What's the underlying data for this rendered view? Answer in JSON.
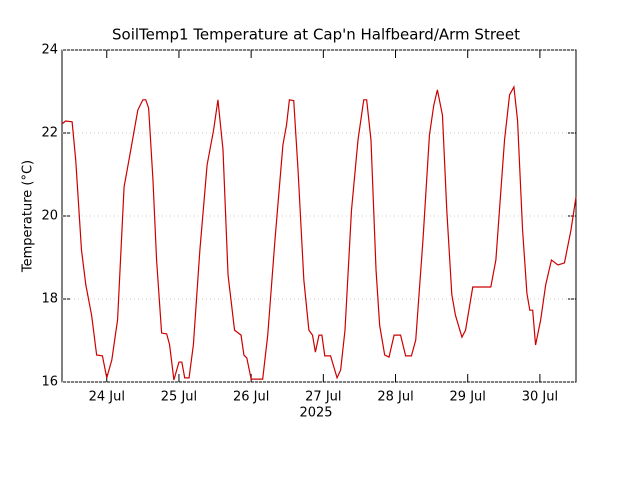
{
  "chart_data": {
    "type": "line",
    "title": "SoilTemp1 Temperature at Cap'n Halfbeard/Arm Street",
    "x_label": "2025",
    "y_label": "Temperature (°C)",
    "x": [
      23.38,
      23.43,
      23.52,
      23.57,
      23.65,
      23.71,
      23.79,
      23.86,
      23.94,
      24.0,
      24.07,
      24.15,
      24.24,
      24.32,
      24.43,
      24.5,
      24.54,
      24.58,
      24.64,
      24.69,
      24.76,
      24.83,
      24.87,
      24.93,
      25.0,
      25.04,
      25.08,
      25.14,
      25.2,
      25.29,
      25.39,
      25.48,
      25.54,
      25.61,
      25.68,
      25.77,
      25.86,
      25.9,
      25.94,
      26.0,
      26.16,
      26.23,
      26.33,
      26.44,
      26.49,
      26.53,
      26.59,
      26.65,
      26.73,
      26.8,
      26.85,
      26.89,
      26.94,
      26.98,
      27.02,
      27.1,
      27.19,
      27.24,
      27.3,
      27.39,
      27.48,
      27.56,
      27.6,
      27.66,
      27.73,
      27.78,
      27.85,
      27.91,
      27.98,
      28.07,
      28.14,
      28.22,
      28.28,
      28.38,
      28.47,
      28.53,
      28.58,
      28.65,
      28.71,
      28.78,
      28.83,
      28.92,
      28.97,
      29.07,
      29.32,
      29.39,
      29.51,
      29.58,
      29.64,
      29.69,
      29.76,
      29.82,
      29.86,
      29.9,
      29.94,
      30.01,
      30.08,
      30.16,
      30.25,
      30.34,
      30.43,
      30.5
    ],
    "series": [
      {
        "name": "SoilTemp1",
        "color": "#cc0000",
        "values": [
          22.22,
          22.29,
          22.27,
          21.35,
          19.18,
          18.34,
          17.61,
          16.65,
          16.63,
          16.1,
          16.53,
          17.5,
          20.7,
          21.47,
          22.55,
          22.8,
          22.8,
          22.6,
          20.87,
          18.94,
          17.18,
          17.16,
          16.9,
          16.05,
          16.48,
          16.48,
          16.1,
          16.1,
          16.9,
          19.18,
          21.23,
          22.07,
          22.8,
          21.6,
          18.58,
          17.25,
          17.13,
          16.65,
          16.58,
          16.07,
          16.07,
          17.13,
          19.42,
          21.71,
          22.19,
          22.8,
          22.78,
          21.1,
          18.46,
          17.25,
          17.13,
          16.72,
          17.13,
          17.13,
          16.63,
          16.63,
          16.1,
          16.29,
          17.25,
          20.14,
          21.83,
          22.8,
          22.8,
          21.83,
          18.7,
          17.37,
          16.65,
          16.6,
          17.13,
          17.13,
          16.63,
          16.63,
          17.01,
          19.42,
          21.95,
          22.67,
          23.04,
          22.43,
          20.14,
          18.1,
          17.61,
          17.08,
          17.25,
          18.29,
          18.29,
          18.94,
          21.83,
          22.92,
          23.11,
          22.31,
          19.66,
          18.14,
          17.73,
          17.73,
          16.89,
          17.49,
          18.34,
          18.94,
          18.82,
          18.87,
          19.66,
          20.46
        ]
      }
    ],
    "xlim": [
      23.38,
      30.5
    ],
    "xticks": [
      {
        "value": 24,
        "label": "24 Jul"
      },
      {
        "value": 25,
        "label": "25 Jul"
      },
      {
        "value": 26,
        "label": "26 Jul"
      },
      {
        "value": 27,
        "label": "27 Jul"
      },
      {
        "value": 28,
        "label": "28 Jul"
      },
      {
        "value": 29,
        "label": "29 Jul"
      },
      {
        "value": 30,
        "label": "30 Jul"
      }
    ],
    "ylim": [
      16,
      24
    ],
    "yticks": [
      16,
      18,
      20,
      22,
      24
    ],
    "grid": true
  }
}
